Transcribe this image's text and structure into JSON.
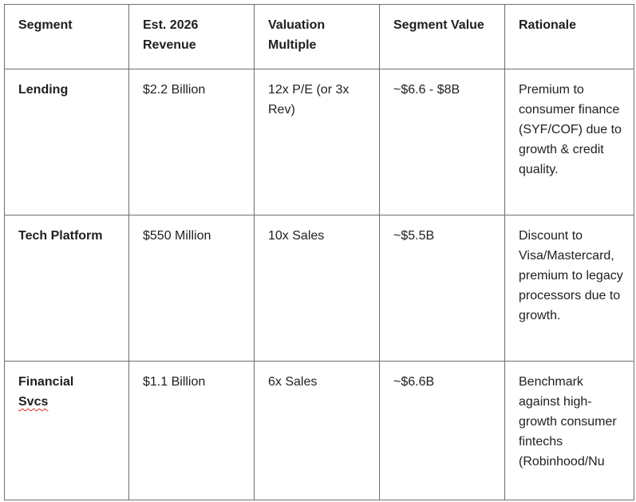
{
  "table": {
    "headers": [
      "Segment",
      "Est. 2026 Revenue",
      "Valuation Multiple",
      "Segment Value",
      "Rationale"
    ],
    "rows": [
      {
        "segment": "Lending",
        "revenue": "$2.2 Billion",
        "multiple": "12x P/E (or 3x Rev)",
        "value": "~$6.6 - $8B",
        "rationale": "Premium to consumer finance (SYF/COF) due to growth & credit quality."
      },
      {
        "segment": "Tech Platform",
        "revenue": "$550 Million",
        "multiple": "10x Sales",
        "value": "~$5.5B",
        "rationale": "Discount to Visa/Mastercard, premium to legacy processors due to growth."
      },
      {
        "segment_first": "Financial",
        "segment_second": "Svcs",
        "revenue": "$1.1 Billion",
        "multiple": "6x Sales",
        "value": "~$6.6B",
        "rationale": "Benchmark against high-growth consumer fintechs (Robinhood/Nu"
      }
    ]
  }
}
